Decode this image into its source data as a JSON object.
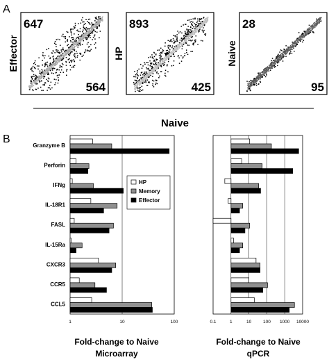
{
  "panel_a": {
    "letter": "A",
    "x_axis_label": "Naive",
    "scatters": [
      {
        "side_label": "Effector",
        "count_up": "647",
        "count_down": "564",
        "spread": 0.26,
        "dense_color": "#a9a9a9",
        "up_points": 260,
        "down_points": 230
      },
      {
        "side_label": "HP",
        "count_up": "893",
        "count_down": "425",
        "spread": 0.2,
        "dense_color": "#bdbdbd",
        "up_points": 300,
        "down_points": 150
      },
      {
        "side_label": "Naive",
        "count_up": "28",
        "count_down": "95",
        "spread": 0.06,
        "dense_color": "#5a5a5a",
        "up_points": 40,
        "down_points": 60
      }
    ]
  },
  "panel_b": {
    "letter": "B",
    "legend": [
      {
        "name": "HP",
        "color": "#ffffff"
      },
      {
        "name": "Memory",
        "color": "#909090"
      },
      {
        "name": "Effector",
        "color": "#000000"
      }
    ]
  },
  "chart_data": [
    {
      "type": "bar",
      "orientation": "horizontal",
      "x_scale": "log",
      "xlim": [
        1,
        100
      ],
      "x_ticks": [
        "1",
        "10",
        "100"
      ],
      "xlabel": "Fold-change to Naive\nMicroarray",
      "xlabel_lines": [
        "Fold-change to Naive",
        "Microarray"
      ],
      "categories": [
        "Granzyme B",
        "Perforin",
        "IFNg",
        "IL-18R1",
        "FASL",
        "IL-15Ra",
        "CXCR3",
        "CCR5",
        "CCL5"
      ],
      "series": [
        {
          "name": "HP",
          "values": [
            2.7,
            1.3,
            1.1,
            2.5,
            1.2,
            1.05,
            3.5,
            1.5,
            2.6
          ]
        },
        {
          "name": "Memory",
          "values": [
            6.3,
            2.3,
            2.8,
            8.0,
            6.8,
            1.7,
            7.5,
            3.0,
            37
          ]
        },
        {
          "name": "Effector",
          "values": [
            80,
            2.2,
            10.5,
            4.4,
            5.6,
            1.3,
            6.3,
            5.0,
            38
          ]
        }
      ]
    },
    {
      "type": "bar",
      "orientation": "horizontal",
      "x_scale": "log",
      "xlim": [
        0.1,
        10000
      ],
      "x_ticks": [
        "0.1",
        "1",
        "10",
        "100",
        "1000",
        "10000"
      ],
      "xlabel": "Fold-change to Naive\nqPCR",
      "xlabel_lines": [
        "Fold-change to Naive",
        "qPCR"
      ],
      "categories": [
        "Granzyme B",
        "Perforin",
        "IFNg",
        "IL-18R1",
        "FASL",
        "IL-15Ra",
        "CXCR3",
        "CCR5",
        "CCL5"
      ],
      "series": [
        {
          "name": "HP",
          "values": [
            11,
            4,
            0.45,
            0.7,
            0.1,
            1.4,
            25,
            10,
            20
          ]
        },
        {
          "name": "Memory",
          "values": [
            180,
            55,
            35,
            4.5,
            11,
            4.5,
            42,
            110,
            3500
          ]
        },
        {
          "name": "Effector",
          "values": [
            6000,
            2800,
            45,
            3,
            6,
            3,
            42,
            60,
            1800
          ]
        }
      ]
    }
  ]
}
